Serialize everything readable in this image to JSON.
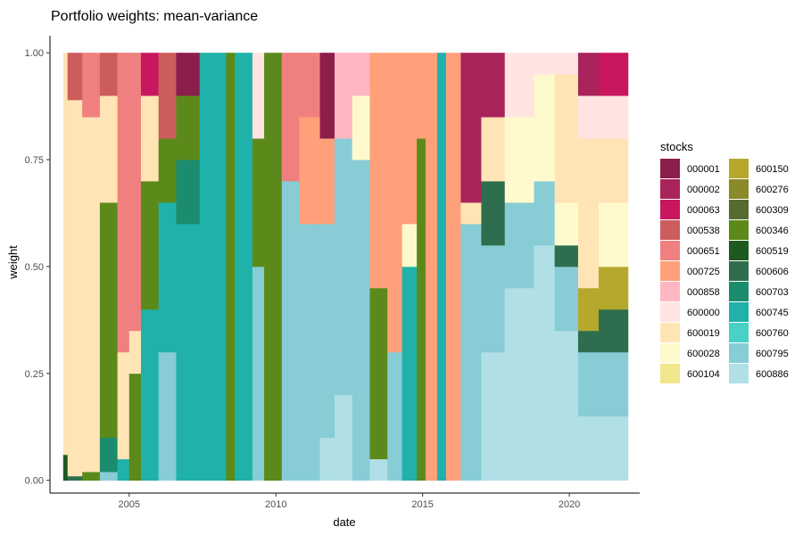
{
  "chart_data": {
    "type": "area",
    "title": "Portfolio weights: mean-variance",
    "xlabel": "date",
    "ylabel": "weight",
    "xlim": [
      2002.3,
      2022.4
    ],
    "ylim": [
      -0.03,
      1.04
    ],
    "xticks": [
      2005,
      2010,
      2015,
      2020
    ],
    "yticks": [
      0.0,
      0.25,
      0.5,
      0.75,
      1.0
    ],
    "ytick_labels": [
      "0.00",
      "0.25",
      "0.50",
      "0.75",
      "1.00"
    ],
    "date_range": [
      2002.75,
      2022.0
    ],
    "grid": false,
    "legend_position": "right",
    "legend_title": "stocks",
    "series": [
      {
        "name": "000001",
        "color": "#8B1E4B"
      },
      {
        "name": "000002",
        "color": "#A8245A"
      },
      {
        "name": "000063",
        "color": "#C8175E"
      },
      {
        "name": "000538",
        "color": "#CD5C5C"
      },
      {
        "name": "000651",
        "color": "#F08080"
      },
      {
        "name": "000725",
        "color": "#FFA07A"
      },
      {
        "name": "000858",
        "color": "#FFB6C1"
      },
      {
        "name": "600000",
        "color": "#FFE4E1"
      },
      {
        "name": "600019",
        "color": "#FFE4B5"
      },
      {
        "name": "600028",
        "color": "#FFFACD"
      },
      {
        "name": "600104",
        "color": "#F0E68C"
      },
      {
        "name": "600150",
        "color": "#B5A82C"
      },
      {
        "name": "600276",
        "color": "#8A8A2A"
      },
      {
        "name": "600309",
        "color": "#556B2F"
      },
      {
        "name": "600346",
        "color": "#5C8A1A"
      },
      {
        "name": "600519",
        "color": "#1E5A20"
      },
      {
        "name": "600606",
        "color": "#2E6E4E"
      },
      {
        "name": "600703",
        "color": "#1B8C6E"
      },
      {
        "name": "600745",
        "color": "#20B2AA"
      },
      {
        "name": "600760",
        "color": "#48D1C4"
      },
      {
        "name": "600795",
        "color": "#88CCD6"
      },
      {
        "name": "600886",
        "color": "#B0E0E6"
      }
    ],
    "segments": [
      {
        "start": 2002.75,
        "end": 2002.9,
        "weights": {
          "600519": 0.06,
          "600019": 0.94
        }
      },
      {
        "start": 2002.9,
        "end": 2003.4,
        "weights": {
          "600606": 0.01,
          "600019": 0.88,
          "000538": 0.11
        }
      },
      {
        "start": 2003.4,
        "end": 2004.0,
        "weights": {
          "600346": 0.02,
          "600019": 0.83,
          "000651": 0.15
        }
      },
      {
        "start": 2004.0,
        "end": 2004.6,
        "weights": {
          "600795": 0.02,
          "600703": 0.08,
          "600346": 0.55,
          "600019": 0.25,
          "000538": 0.1
        }
      },
      {
        "start": 2004.6,
        "end": 2005.0,
        "weights": {
          "600745": 0.05,
          "600019": 0.25,
          "000651": 0.7
        }
      },
      {
        "start": 2005.0,
        "end": 2005.4,
        "weights": {
          "600346": 0.25,
          "600019": 0.1,
          "000651": 0.65
        }
      },
      {
        "start": 2005.4,
        "end": 2006.0,
        "weights": {
          "600745": 0.4,
          "600346": 0.3,
          "600019": 0.2,
          "000063": 0.1
        }
      },
      {
        "start": 2006.0,
        "end": 2006.6,
        "weights": {
          "600795": 0.3,
          "600745": 0.35,
          "600346": 0.15,
          "000538": 0.2
        }
      },
      {
        "start": 2006.6,
        "end": 2007.4,
        "weights": {
          "600745": 0.6,
          "600703": 0.15,
          "600346": 0.15,
          "000001": 0.1
        }
      },
      {
        "start": 2007.4,
        "end": 2008.3,
        "weights": {
          "600745": 1.0
        }
      },
      {
        "start": 2008.3,
        "end": 2008.6,
        "weights": {
          "600346": 1.0
        }
      },
      {
        "start": 2008.6,
        "end": 2009.2,
        "weights": {
          "600745": 1.0
        }
      },
      {
        "start": 2009.2,
        "end": 2009.6,
        "weights": {
          "600795": 0.5,
          "600346": 0.3,
          "600000": 0.2
        }
      },
      {
        "start": 2009.6,
        "end": 2010.2,
        "weights": {
          "600346": 1.0
        }
      },
      {
        "start": 2010.2,
        "end": 2010.8,
        "weights": {
          "600795": 0.7,
          "000651": 0.3
        }
      },
      {
        "start": 2010.8,
        "end": 2011.5,
        "weights": {
          "600795": 0.6,
          "000725": 0.25,
          "000651": 0.15
        }
      },
      {
        "start": 2011.5,
        "end": 2012.0,
        "weights": {
          "600886": 0.1,
          "600795": 0.5,
          "000001": 0.2,
          "000725": 0.2
        }
      },
      {
        "start": 2012.0,
        "end": 2012.6,
        "weights": {
          "600886": 0.2,
          "600795": 0.6,
          "000858": 0.2
        }
      },
      {
        "start": 2012.6,
        "end": 2013.2,
        "weights": {
          "600795": 0.75,
          "600028": 0.15,
          "000858": 0.1
        }
      },
      {
        "start": 2013.2,
        "end": 2013.8,
        "weights": {
          "600886": 0.05,
          "600346": 0.4,
          "000725": 0.55
        }
      },
      {
        "start": 2013.8,
        "end": 2014.3,
        "weights": {
          "600795": 0.3,
          "000725": 0.7
        }
      },
      {
        "start": 2014.3,
        "end": 2014.8,
        "weights": {
          "600745": 0.5,
          "600028": 0.1,
          "000725": 0.4
        }
      },
      {
        "start": 2014.8,
        "end": 2015.1,
        "weights": {
          "600346": 0.8,
          "000725": 0.2
        }
      },
      {
        "start": 2015.1,
        "end": 2015.5,
        "weights": {
          "000725": 1.0
        }
      },
      {
        "start": 2015.5,
        "end": 2015.8,
        "weights": {
          "600745": 1.0
        }
      },
      {
        "start": 2015.8,
        "end": 2016.3,
        "weights": {
          "000725": 1.0
        }
      },
      {
        "start": 2016.3,
        "end": 2017.0,
        "weights": {
          "600795": 0.6,
          "600019": 0.05,
          "000002": 0.35
        }
      },
      {
        "start": 2017.0,
        "end": 2017.8,
        "weights": {
          "600886": 0.3,
          "600795": 0.25,
          "600606": 0.15,
          "600019": 0.15,
          "000002": 0.15
        }
      },
      {
        "start": 2017.8,
        "end": 2018.8,
        "weights": {
          "600886": 0.45,
          "600795": 0.2,
          "600028": 0.2,
          "600000": 0.15
        }
      },
      {
        "start": 2018.8,
        "end": 2019.5,
        "weights": {
          "600886": 0.55,
          "600795": 0.15,
          "600028": 0.25,
          "600000": 0.05
        }
      },
      {
        "start": 2019.5,
        "end": 2020.3,
        "weights": {
          "600886": 0.35,
          "600795": 0.15,
          "600606": 0.05,
          "600019": 0.3,
          "600028": 0.1,
          "600000": 0.05
        }
      },
      {
        "start": 2020.3,
        "end": 2021.0,
        "weights": {
          "600886": 0.15,
          "600795": 0.15,
          "600150": 0.1,
          "600606": 0.05,
          "600019": 0.35,
          "600000": 0.1,
          "000002": 0.1
        }
      },
      {
        "start": 2021.0,
        "end": 2022.0,
        "weights": {
          "600886": 0.15,
          "600795": 0.15,
          "600606": 0.1,
          "600150": 0.1,
          "600028": 0.15,
          "600019": 0.15,
          "600000": 0.1,
          "000063": 0.1
        }
      }
    ]
  }
}
